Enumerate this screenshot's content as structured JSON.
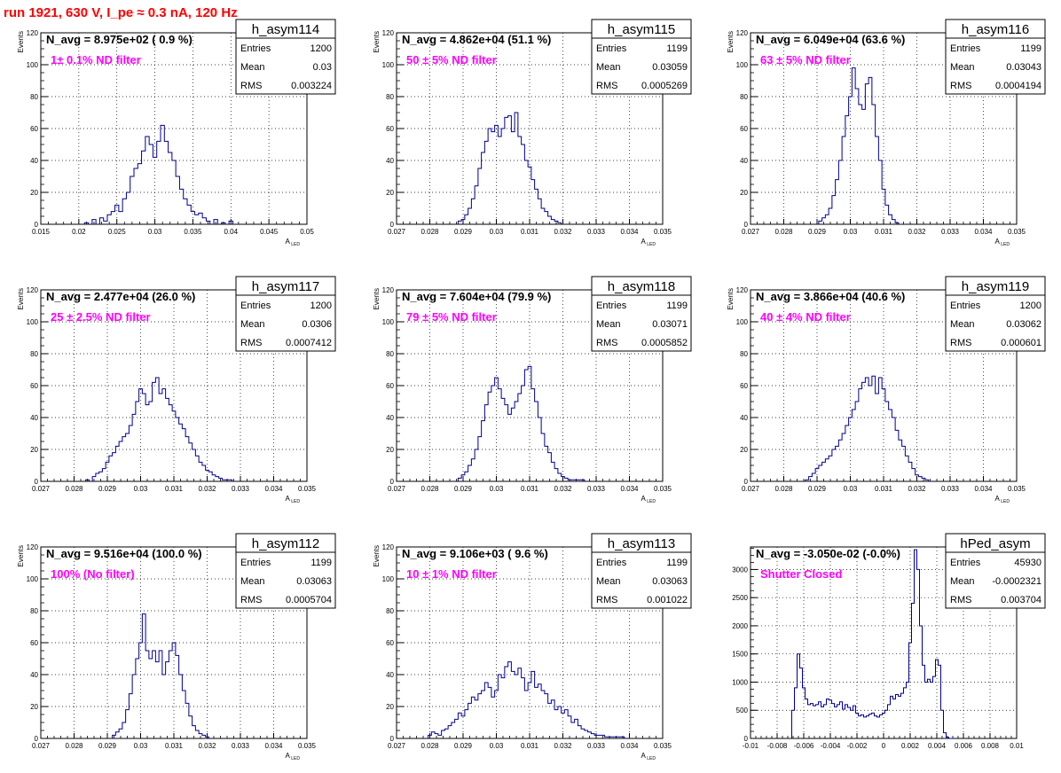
{
  "page_title": "run 1921,   630 V, I_pe ≈ 0.3 nA, 120 Hz",
  "colors": {
    "histogram": "#00008b",
    "annotation": "#ff00ff",
    "run_title": "#ff0000",
    "grid": "#000000"
  },
  "stat_labels": {
    "entries": "Entries",
    "mean": "Mean",
    "rms": "RMS"
  },
  "chart_data": [
    {
      "type": "histogram",
      "name": "h_asym114",
      "navg": "N_avg = 8.975e+02 ( 0.9 %)",
      "note": "1± 0.1% ND filter",
      "entries": "1200",
      "mean": "0.03",
      "rms": "0.003224",
      "xlabel": "A",
      "xlabel_sub": "LED",
      "ylabel": "Events",
      "xlim": [
        0.015,
        0.05
      ],
      "ylim": [
        0,
        120
      ],
      "xticks": [
        "0.015",
        "0.02",
        "0.025",
        "0.03",
        "0.035",
        "0.04",
        "0.045",
        "0.05"
      ],
      "yticks": [
        "0",
        "20",
        "40",
        "60",
        "80",
        "100",
        "120"
      ],
      "bin_width": 0.0005,
      "x": [
        0.021,
        0.022,
        0.023,
        0.0235,
        0.024,
        0.0245,
        0.025,
        0.0255,
        0.026,
        0.0265,
        0.027,
        0.0275,
        0.028,
        0.0285,
        0.029,
        0.0295,
        0.03,
        0.0305,
        0.031,
        0.0315,
        0.032,
        0.0325,
        0.033,
        0.0335,
        0.034,
        0.0345,
        0.035,
        0.0355,
        0.036,
        0.0365,
        0.037,
        0.038,
        0.039,
        0.04
      ],
      "y": [
        1,
        3,
        4,
        2,
        6,
        8,
        12,
        8,
        16,
        20,
        30,
        35,
        38,
        46,
        55,
        50,
        42,
        52,
        62,
        52,
        45,
        40,
        30,
        22,
        16,
        12,
        8,
        6,
        7,
        4,
        2,
        3,
        1,
        2
      ]
    },
    {
      "type": "histogram",
      "name": "h_asym115",
      "navg": "N_avg = 4.862e+04 (51.1 %)",
      "note": "50 ± 5% ND filter",
      "entries": "1199",
      "mean": "0.03059",
      "rms": "0.0005269",
      "xlabel": "A",
      "xlabel_sub": "LED",
      "ylabel": "Events",
      "xlim": [
        0.027,
        0.035
      ],
      "ylim": [
        0,
        120
      ],
      "xticks": [
        "0.027",
        "0.028",
        "0.029",
        "0.03",
        "0.031",
        "0.032",
        "0.033",
        "0.034",
        "0.035"
      ],
      "yticks": [
        "0",
        "20",
        "40",
        "60",
        "80",
        "100",
        "120"
      ],
      "bin_width": 0.0001,
      "x": [
        0.0289,
        0.029,
        0.0291,
        0.0292,
        0.0293,
        0.0294,
        0.0295,
        0.0296,
        0.0297,
        0.0298,
        0.0299,
        0.03,
        0.0301,
        0.0302,
        0.0303,
        0.0304,
        0.0305,
        0.0306,
        0.0307,
        0.0308,
        0.0309,
        0.031,
        0.0311,
        0.0312,
        0.0313,
        0.0314,
        0.0315,
        0.0316,
        0.0317,
        0.0318,
        0.0319
      ],
      "y": [
        2,
        3,
        6,
        10,
        16,
        24,
        35,
        45,
        52,
        60,
        58,
        62,
        55,
        60,
        67,
        68,
        58,
        70,
        55,
        50,
        40,
        36,
        28,
        22,
        16,
        10,
        8,
        5,
        3,
        2,
        1
      ]
    },
    {
      "type": "histogram",
      "name": "h_asym116",
      "navg": "N_avg = 6.049e+04 (63.6 %)",
      "note": "63 ± 5% ND filter",
      "entries": "1199",
      "mean": "0.03043",
      "rms": "0.0004194",
      "xlabel": "A",
      "xlabel_sub": "LED",
      "ylabel": "Events",
      "xlim": [
        0.027,
        0.035
      ],
      "ylim": [
        0,
        120
      ],
      "xticks": [
        "0.027",
        "0.028",
        "0.029",
        "0.03",
        "0.031",
        "0.032",
        "0.033",
        "0.034",
        "0.035"
      ],
      "yticks": [
        "0",
        "20",
        "40",
        "60",
        "80",
        "100",
        "120"
      ],
      "bin_width": 0.0001,
      "x": [
        0.0291,
        0.0292,
        0.0293,
        0.0294,
        0.0295,
        0.0296,
        0.0297,
        0.0298,
        0.0299,
        0.03,
        0.0301,
        0.0302,
        0.0303,
        0.0304,
        0.0305,
        0.0306,
        0.0307,
        0.0308,
        0.0309,
        0.031,
        0.0311,
        0.0312,
        0.0313,
        0.0314
      ],
      "y": [
        2,
        4,
        6,
        10,
        18,
        28,
        40,
        55,
        68,
        80,
        98,
        85,
        75,
        72,
        88,
        92,
        75,
        55,
        40,
        22,
        12,
        6,
        3,
        1
      ]
    },
    {
      "type": "histogram",
      "name": "h_asym117",
      "navg": "N_avg = 2.477e+04 (26.0 %)",
      "note": "25 ± 2.5% ND filter",
      "entries": "1200",
      "mean": "0.0306",
      "rms": "0.0007412",
      "xlabel": "A",
      "xlabel_sub": "LED",
      "ylabel": "Events",
      "xlim": [
        0.027,
        0.035
      ],
      "ylim": [
        0,
        120
      ],
      "xticks": [
        "0.027",
        "0.028",
        "0.029",
        "0.03",
        "0.031",
        "0.032",
        "0.033",
        "0.034",
        "0.035"
      ],
      "yticks": [
        "0",
        "20",
        "40",
        "60",
        "80",
        "100",
        "120"
      ],
      "bin_width": 0.0001,
      "x": [
        0.0284,
        0.0286,
        0.0287,
        0.0288,
        0.0289,
        0.029,
        0.0291,
        0.0292,
        0.0293,
        0.0294,
        0.0295,
        0.0296,
        0.0297,
        0.0298,
        0.0299,
        0.03,
        0.0301,
        0.0302,
        0.0303,
        0.0304,
        0.0305,
        0.0306,
        0.0307,
        0.0308,
        0.0309,
        0.031,
        0.0311,
        0.0312,
        0.0313,
        0.0314,
        0.0315,
        0.0316,
        0.0317,
        0.0318,
        0.0319,
        0.032,
        0.0321,
        0.0322,
        0.0323,
        0.0324,
        0.0325,
        0.0326,
        0.0327
      ],
      "y": [
        1,
        3,
        5,
        6,
        8,
        12,
        16,
        18,
        22,
        25,
        28,
        30,
        35,
        42,
        50,
        58,
        55,
        48,
        50,
        62,
        65,
        55,
        58,
        52,
        48,
        44,
        40,
        36,
        33,
        28,
        24,
        20,
        16,
        12,
        10,
        7,
        6,
        4,
        3,
        2,
        1,
        1,
        1
      ]
    },
    {
      "type": "histogram",
      "name": "h_asym118",
      "navg": "N_avg = 7.604e+04 (79.9 %)",
      "note": "79 ± 5% ND filter",
      "entries": "1199",
      "mean": "0.03071",
      "rms": "0.0005852",
      "xlabel": "A",
      "xlabel_sub": "LED",
      "ylabel": "Events",
      "xlim": [
        0.027,
        0.035
      ],
      "ylim": [
        0,
        120
      ],
      "xticks": [
        "0.027",
        "0.028",
        "0.029",
        "0.03",
        "0.031",
        "0.032",
        "0.033",
        "0.034",
        "0.035"
      ],
      "yticks": [
        "0",
        "20",
        "40",
        "60",
        "80",
        "100",
        "120"
      ],
      "bin_width": 0.0001,
      "x": [
        0.0289,
        0.029,
        0.0291,
        0.0292,
        0.0293,
        0.0294,
        0.0295,
        0.0296,
        0.0297,
        0.0298,
        0.0299,
        0.03,
        0.0301,
        0.0302,
        0.0303,
        0.0304,
        0.0305,
        0.0306,
        0.0307,
        0.0308,
        0.0309,
        0.031,
        0.0311,
        0.0312,
        0.0313,
        0.0314,
        0.0315,
        0.0316,
        0.0317,
        0.0318,
        0.0319,
        0.032,
        0.0321,
        0.0322,
        0.0323,
        0.0324,
        0.0325,
        0.0326
      ],
      "y": [
        2,
        4,
        6,
        10,
        14,
        20,
        28,
        38,
        48,
        56,
        60,
        65,
        58,
        52,
        48,
        42,
        46,
        50,
        55,
        60,
        70,
        72,
        58,
        50,
        40,
        30,
        22,
        18,
        12,
        8,
        5,
        3,
        2,
        1,
        1,
        1,
        1,
        1
      ]
    },
    {
      "type": "histogram",
      "name": "h_asym119",
      "navg": "N_avg = 3.866e+04 (40.6 %)",
      "note": "40 ± 4% ND filter",
      "entries": "1200",
      "mean": "0.03062",
      "rms": "0.000601",
      "xlabel": "A",
      "xlabel_sub": "LED",
      "ylabel": "Events",
      "xlim": [
        0.027,
        0.035
      ],
      "ylim": [
        0,
        120
      ],
      "xticks": [
        "0.027",
        "0.028",
        "0.029",
        "0.03",
        "0.031",
        "0.032",
        "0.033",
        "0.034",
        "0.035"
      ],
      "yticks": [
        "0",
        "20",
        "40",
        "60",
        "80",
        "100",
        "120"
      ],
      "bin_width": 0.0001,
      "x": [
        0.0287,
        0.0288,
        0.0289,
        0.029,
        0.0291,
        0.0292,
        0.0293,
        0.0294,
        0.0295,
        0.0296,
        0.0297,
        0.0298,
        0.0299,
        0.03,
        0.0301,
        0.0302,
        0.0303,
        0.0304,
        0.0305,
        0.0306,
        0.0307,
        0.0308,
        0.0309,
        0.031,
        0.0311,
        0.0312,
        0.0313,
        0.0314,
        0.0315,
        0.0316,
        0.0317,
        0.0318,
        0.0319,
        0.032,
        0.0321,
        0.0322,
        0.0323
      ],
      "y": [
        1,
        3,
        5,
        8,
        10,
        12,
        14,
        16,
        20,
        22,
        26,
        30,
        35,
        40,
        45,
        50,
        58,
        62,
        65,
        60,
        66,
        55,
        65,
        58,
        50,
        45,
        40,
        32,
        26,
        22,
        16,
        12,
        8,
        4,
        3,
        2,
        1
      ]
    },
    {
      "type": "histogram",
      "name": "h_asym112",
      "navg": "N_avg = 9.516e+04 (100.0 %)",
      "note": "100% (No filter)",
      "entries": "1199",
      "mean": "0.03063",
      "rms": "0.0005704",
      "xlabel": "A",
      "xlabel_sub": "LED",
      "ylabel": "Events",
      "xlim": [
        0.027,
        0.035
      ],
      "ylim": [
        0,
        120
      ],
      "xticks": [
        "0.027",
        "0.028",
        "0.029",
        "0.03",
        "0.031",
        "0.032",
        "0.033",
        "0.034",
        "0.035"
      ],
      "yticks": [
        "0",
        "20",
        "40",
        "60",
        "80",
        "100",
        "120"
      ],
      "bin_width": 0.0001,
      "x": [
        0.0292,
        0.0293,
        0.0294,
        0.0295,
        0.0296,
        0.0297,
        0.0298,
        0.0299,
        0.03,
        0.0301,
        0.0302,
        0.0303,
        0.0304,
        0.0305,
        0.0306,
        0.0307,
        0.0308,
        0.0309,
        0.031,
        0.0311,
        0.0312,
        0.0313,
        0.0314,
        0.0315,
        0.0316,
        0.0317,
        0.0318,
        0.0319,
        0.032
      ],
      "y": [
        2,
        4,
        6,
        10,
        18,
        28,
        40,
        50,
        60,
        78,
        55,
        50,
        55,
        48,
        55,
        40,
        48,
        55,
        60,
        52,
        40,
        30,
        22,
        14,
        8,
        5,
        3,
        2,
        1
      ]
    },
    {
      "type": "histogram",
      "name": "h_asym113",
      "navg": "N_avg = 9.106e+03 ( 9.6 %)",
      "note": "10 ± 1% ND filter",
      "entries": "1199",
      "mean": "0.03063",
      "rms": "0.001022",
      "xlabel": "A",
      "xlabel_sub": "LED",
      "ylabel": "Events",
      "xlim": [
        0.027,
        0.035
      ],
      "ylim": [
        0,
        120
      ],
      "xticks": [
        "0.027",
        "0.028",
        "0.029",
        "0.03",
        "0.031",
        "0.032",
        "0.033",
        "0.034",
        "0.035"
      ],
      "yticks": [
        "0",
        "20",
        "40",
        "60",
        "80",
        "100",
        "120"
      ],
      "bin_width": 0.0001,
      "x": [
        0.028,
        0.0281,
        0.0282,
        0.0283,
        0.0284,
        0.0285,
        0.0286,
        0.0287,
        0.0288,
        0.0289,
        0.029,
        0.0291,
        0.0292,
        0.0293,
        0.0294,
        0.0295,
        0.0296,
        0.0297,
        0.0298,
        0.0299,
        0.03,
        0.0301,
        0.0302,
        0.0303,
        0.0304,
        0.0305,
        0.0306,
        0.0307,
        0.0308,
        0.0309,
        0.031,
        0.0311,
        0.0312,
        0.0313,
        0.0314,
        0.0315,
        0.0316,
        0.0317,
        0.0318,
        0.0319,
        0.032,
        0.0321,
        0.0322,
        0.0323,
        0.0324,
        0.0325,
        0.0326,
        0.0327,
        0.0328,
        0.0329,
        0.033,
        0.0331,
        0.0332,
        0.0333,
        0.0334,
        0.0335,
        0.0336,
        0.0337,
        0.0338
      ],
      "y": [
        2,
        4,
        3,
        2,
        5,
        6,
        8,
        10,
        12,
        16,
        14,
        18,
        22,
        26,
        24,
        28,
        30,
        35,
        32,
        26,
        30,
        40,
        38,
        45,
        48,
        42,
        40,
        44,
        38,
        30,
        35,
        42,
        32,
        34,
        30,
        28,
        22,
        24,
        18,
        20,
        16,
        18,
        14,
        10,
        12,
        8,
        6,
        5,
        4,
        3,
        2,
        2,
        2,
        1,
        1,
        1,
        1,
        1,
        1
      ]
    },
    {
      "type": "histogram",
      "name": "hPed_asym",
      "navg": "N_avg = -3.050e-02 (-0.0%)",
      "note": "Shutter Closed",
      "entries": "45930",
      "mean": "-0.0002321",
      "rms": "0.003704",
      "xlabel": "",
      "xlabel_sub": "",
      "ylabel": "",
      "xlim": [
        -0.01,
        0.01
      ],
      "ylim": [
        0,
        3400
      ],
      "xticks": [
        "-0.01",
        "-0.008",
        "-0.006",
        "-0.004",
        "-0.002",
        "0",
        "0.002",
        "0.004",
        "0.006",
        "0.008",
        "0.01"
      ],
      "yticks": [
        "0",
        "500",
        "1000",
        "1500",
        "2000",
        "2500",
        "3000"
      ],
      "bin_width": 0.0002,
      "x": [
        -0.0068,
        -0.0066,
        -0.0064,
        -0.0062,
        -0.006,
        -0.0058,
        -0.0056,
        -0.0054,
        -0.0052,
        -0.005,
        -0.0048,
        -0.0046,
        -0.0044,
        -0.0042,
        -0.004,
        -0.0038,
        -0.0036,
        -0.0034,
        -0.0032,
        -0.003,
        -0.0028,
        -0.0026,
        -0.0024,
        -0.0022,
        -0.002,
        -0.0018,
        -0.0016,
        -0.0014,
        -0.0012,
        -0.001,
        -0.0008,
        -0.0006,
        -0.0004,
        -0.0002,
        0.0,
        0.0002,
        0.0004,
        0.0006,
        0.0008,
        0.001,
        0.0012,
        0.0014,
        0.0016,
        0.0018,
        0.002,
        0.0022,
        0.0024,
        0.0026,
        0.0028,
        0.003,
        0.0032,
        0.0034,
        0.0036,
        0.0038,
        0.004,
        0.0042,
        0.0044,
        0.0046,
        0.0048,
        0.005,
        0.0052
      ],
      "y": [
        500,
        900,
        1500,
        1250,
        900,
        700,
        600,
        620,
        580,
        600,
        650,
        560,
        600,
        700,
        680,
        620,
        560,
        600,
        650,
        520,
        600,
        550,
        500,
        580,
        450,
        400,
        420,
        380,
        400,
        430,
        450,
        400,
        380,
        420,
        450,
        500,
        600,
        750,
        700,
        780,
        750,
        800,
        900,
        1000,
        1700,
        2400,
        3350,
        3000,
        2000,
        1300,
        1000,
        1050,
        1000,
        1100,
        1400,
        1300,
        500,
        100,
        20,
        0,
        0
      ]
    }
  ]
}
